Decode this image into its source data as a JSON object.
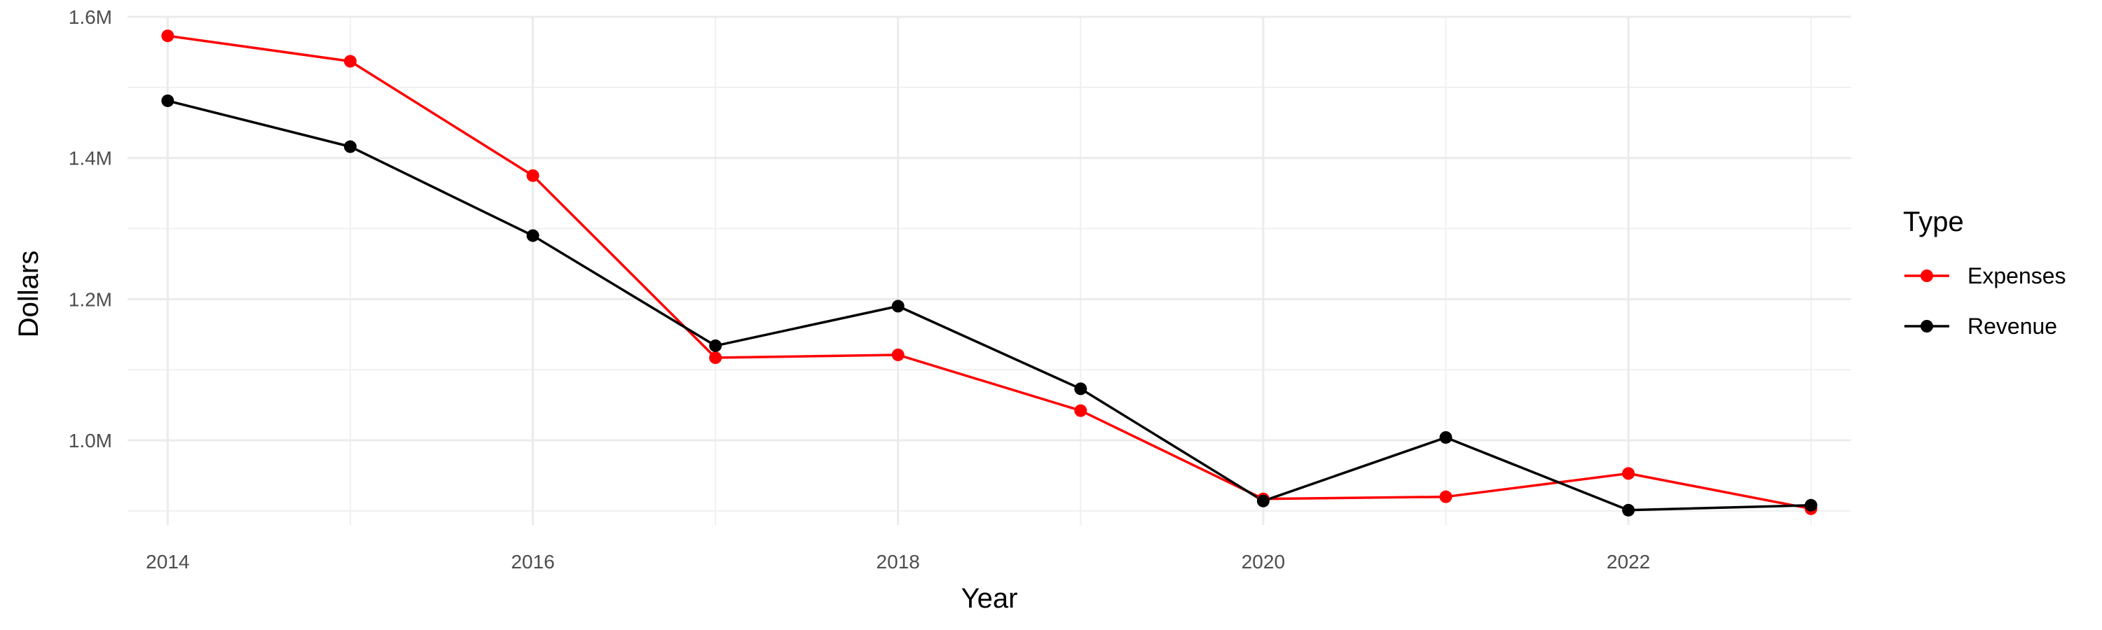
{
  "chart_data": {
    "type": "line",
    "title": "",
    "xlabel": "Year",
    "ylabel": "Dollars",
    "x": [
      2014,
      2015,
      2016,
      2017,
      2018,
      2019,
      2020,
      2021,
      2022,
      2023
    ],
    "x_tick_values": [
      2014,
      2016,
      2018,
      2020,
      2022
    ],
    "x_tick_labels": [
      "2014",
      "2016",
      "2018",
      "2020",
      "2022"
    ],
    "y_tick_values": [
      1000000,
      1200000,
      1400000,
      1600000
    ],
    "y_tick_labels": [
      "1.0M",
      "1.2M",
      "1.4M",
      "1.6M"
    ],
    "xlim": [
      2013.78,
      2023.22
    ],
    "ylim": [
      880000,
      1600000
    ],
    "grid": true,
    "legend": {
      "title": "Type",
      "position": "right"
    },
    "series": [
      {
        "name": "Expenses",
        "color": "#ff0000",
        "values": [
          1573000,
          1537000,
          1375000,
          1117000,
          1121000,
          1042000,
          917000,
          920000,
          953000,
          903000
        ]
      },
      {
        "name": "Revenue",
        "color": "#000000",
        "values": [
          1481000,
          1416000,
          1290000,
          1134000,
          1190000,
          1073000,
          914000,
          1004000,
          901000,
          908000
        ]
      }
    ]
  }
}
